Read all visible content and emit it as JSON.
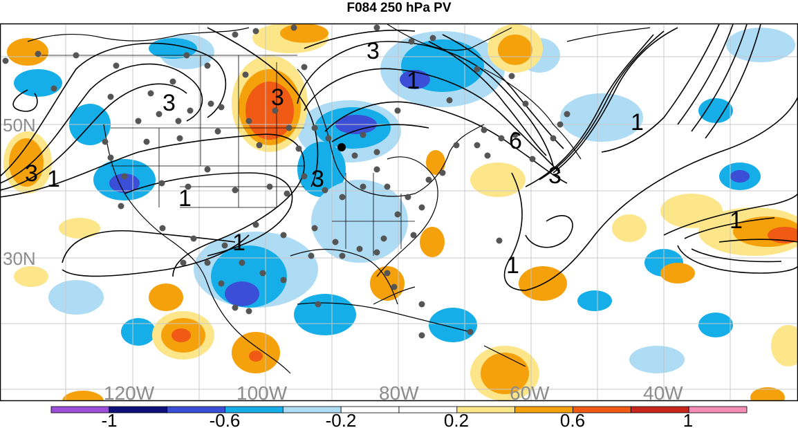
{
  "title": "F084 250 hPa PV",
  "map": {
    "lat_labels": [
      "50N",
      "30N"
    ],
    "lon_labels": [
      "120W",
      "100W",
      "80W",
      "60W",
      "40W"
    ],
    "contour_labels": [
      "3",
      "3",
      "3",
      "3",
      "1",
      "6",
      "3",
      "1",
      "1",
      "1",
      "3",
      "1",
      "1",
      "1"
    ]
  },
  "colorbar": {
    "colors": [
      "#9a4fd6",
      "#0f0f7a",
      "#3a4fd6",
      "#16aee8",
      "#aedcf5",
      "#ffffff",
      "#ffffff",
      "#fde68a",
      "#f5a10b",
      "#f05a14",
      "#c8261c",
      "#f48db4"
    ],
    "tick_labels": [
      "-1",
      "-0.6",
      "-0.2",
      "0.2",
      "0.6",
      "1"
    ]
  }
}
